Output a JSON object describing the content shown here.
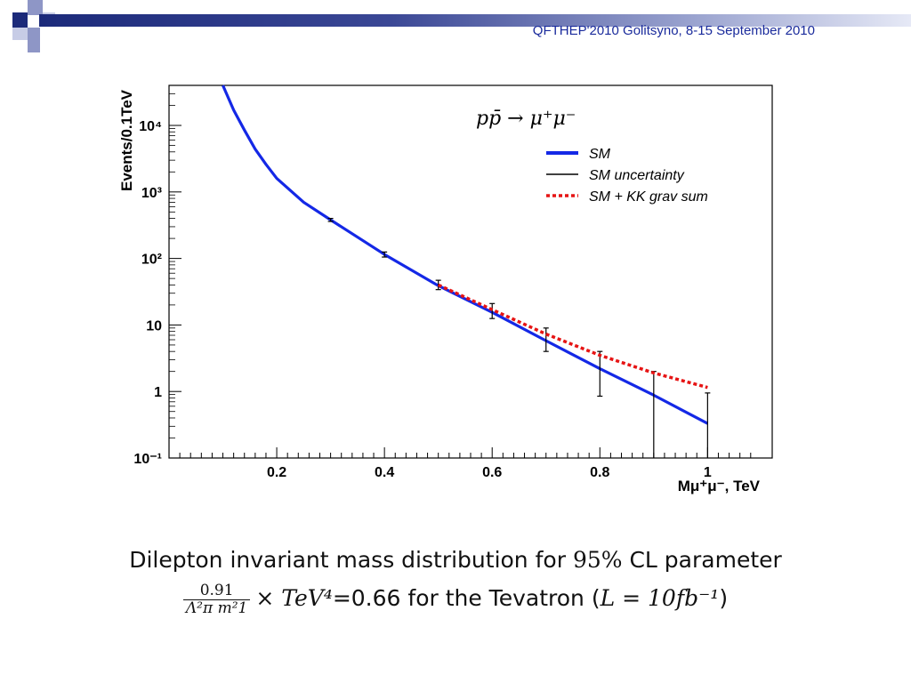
{
  "header": {
    "conference": "QFTHEP'2010 Golitsyno, 8-15 September 2010"
  },
  "colors": {
    "header_navy": "#1c2a7a",
    "header_light": "#9aa3cf",
    "sm": "#1428e6",
    "kk": "#e61414",
    "uncertainty": "#000000"
  },
  "caption": {
    "line1_text": "Dilepton invariant mass distribution for",
    "line1_value": "95%",
    "line1_tail": "CL parameter",
    "frac_num": "0.91",
    "frac_den": "Λ²π m²1",
    "times_term": "× TeV⁴",
    "line2_eq": "=0.66 for the Tevatron (",
    "lumi": "L = 10fb⁻¹",
    "line2_close": ")"
  },
  "chart_data": {
    "type": "line",
    "title": "pp̄ → μ⁺μ⁻",
    "xlabel": "Mμ⁺μ⁻, TeV",
    "ylabel": "Events/0.1TeV",
    "xlim": [
      0.0,
      1.12
    ],
    "ylim": [
      0.1,
      40000
    ],
    "y_scale": "log",
    "x_ticks": [
      "0.2",
      "0.4",
      "0.6",
      "0.8",
      "1"
    ],
    "y_ticks": [
      "10⁻¹",
      "1",
      "10",
      "10²",
      "10³",
      "10⁴"
    ],
    "legend_position": "top-right",
    "series": [
      {
        "name": "SM",
        "style": "solid",
        "x": [
          0.1,
          0.12,
          0.14,
          0.16,
          0.18,
          0.2,
          0.25,
          0.3,
          0.4,
          0.5,
          0.6,
          0.7,
          0.8,
          0.9,
          1.0
        ],
        "y": [
          40000,
          17000,
          8500,
          4400,
          2600,
          1600,
          700,
          380,
          115,
          39,
          15.5,
          5.8,
          2.2,
          0.88,
          0.33
        ]
      },
      {
        "name": "SM uncertainty",
        "style": "errorbar",
        "x": [
          0.3,
          0.4,
          0.5,
          0.6,
          0.7,
          0.8,
          0.9,
          1.0
        ],
        "y": [
          380,
          115,
          40,
          16.5,
          7,
          2.2,
          0.9,
          0.33
        ],
        "err_low": [
          360,
          105,
          34,
          12.5,
          4,
          0.85,
          0.1,
          0.1
        ],
        "err_high": [
          400,
          125,
          47,
          21,
          9,
          4,
          2,
          0.95
        ]
      },
      {
        "name": "SM + KK grav sum",
        "style": "dotted",
        "x": [
          0.5,
          0.6,
          0.7,
          0.8,
          0.9,
          1.0
        ],
        "y": [
          40,
          17,
          7.3,
          3.5,
          1.9,
          1.15
        ]
      }
    ]
  }
}
